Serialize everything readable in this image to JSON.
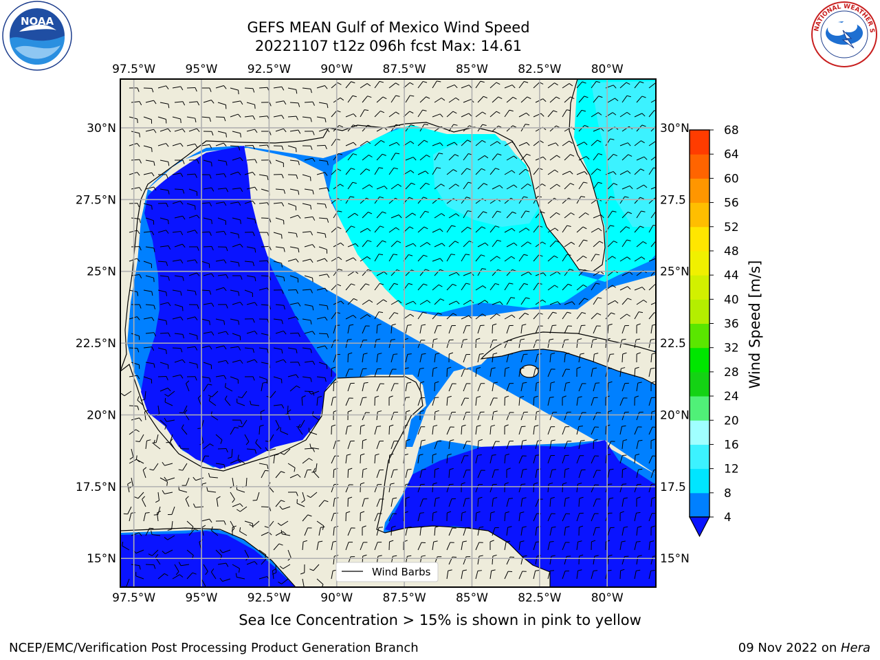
{
  "title": {
    "line1": "GEFS MEAN Gulf of Mexico Wind Speed",
    "line2": "20221107 t12z 096h fcst   Max: 14.61"
  },
  "map": {
    "lon_ticks": [
      "97.5°W",
      "95°W",
      "92.5°W",
      "90°W",
      "87.5°W",
      "85°W",
      "82.5°W",
      "80°W"
    ],
    "lat_ticks_left": [
      "30°N",
      "27.5°N",
      "25°N",
      "22.5°N",
      "20°N",
      "17.5°N",
      "15°N"
    ],
    "lat_ticks_right": [
      "30°N",
      "27.5",
      "25°N",
      "22.5",
      "20°N",
      "17.5",
      "15°N"
    ],
    "lon_range": [
      -98,
      -78.2
    ],
    "lat_range": [
      14,
      31.7
    ],
    "grid": true,
    "legend_label": "Wind Barbs",
    "land_color": "#eeecdb",
    "coast_color": "#000000"
  },
  "colorbar": {
    "label": "Wind Speed [m/s]",
    "levels": [
      "4",
      "8",
      "12",
      "16",
      "20",
      "24",
      "28",
      "32",
      "36",
      "40",
      "44",
      "48",
      "52",
      "56",
      "60",
      "64",
      "68"
    ],
    "colors": [
      "#0080ff",
      "#00e5ff",
      "#3cf2ff",
      "#a0ffff",
      "#50f078",
      "#14d214",
      "#00e600",
      "#5ae600",
      "#b4ee00",
      "#d2f000",
      "#f0f000",
      "#ffe600",
      "#ffbe00",
      "#ff9600",
      "#ff6400",
      "#ff3c00",
      "#ff0000"
    ],
    "extend_color": "#0a14ff"
  },
  "chart_data": {
    "type": "heatmap",
    "title": "GEFS MEAN Gulf of Mexico Wind Speed",
    "subtitle": "20221107 t12z 096h fcst   Max: 14.61",
    "units": "m/s",
    "max_value": 14.61,
    "levels": [
      4,
      8,
      12,
      16,
      20,
      24,
      28,
      32,
      36,
      40,
      44,
      48,
      52,
      56,
      60,
      64,
      68
    ],
    "visible_bins": [
      {
        "range": "< 4",
        "color": "#0a14ff",
        "region": "western Gulf, Bay of Campeche, NW Caribbean, eastern Pacific"
      },
      {
        "range": "4-8",
        "color": "#0080ff",
        "region": "central Gulf, SE Gulf, Yucatan Channel, Caribbean north of Honduras"
      },
      {
        "range": "8-12",
        "color": "#00ffff",
        "region": "northeastern Gulf, eastern Gulf near Florida"
      },
      {
        "range": "12-16",
        "color": "#40f6ff",
        "region": "NE Gulf offshore Florida panhandle, Atlantic east of Florida"
      }
    ]
  },
  "annotation": "Sea Ice Concentration > 15% is shown in pink to yellow",
  "footer": {
    "left": "NCEP/EMC/Verification Post Processing Product Generation Branch",
    "right_date": "09 Nov 2022 on ",
    "right_host": "Hera"
  },
  "logos": {
    "left": {
      "text": "NOAA",
      "ring_text": "NATIONAL OCEANIC AND ATMOSPHERIC ADMINISTRATION · U.S. DEPARTMENT OF COMMERCE"
    },
    "right": {
      "text": "NATIONAL WEATHER SERVICE"
    }
  }
}
